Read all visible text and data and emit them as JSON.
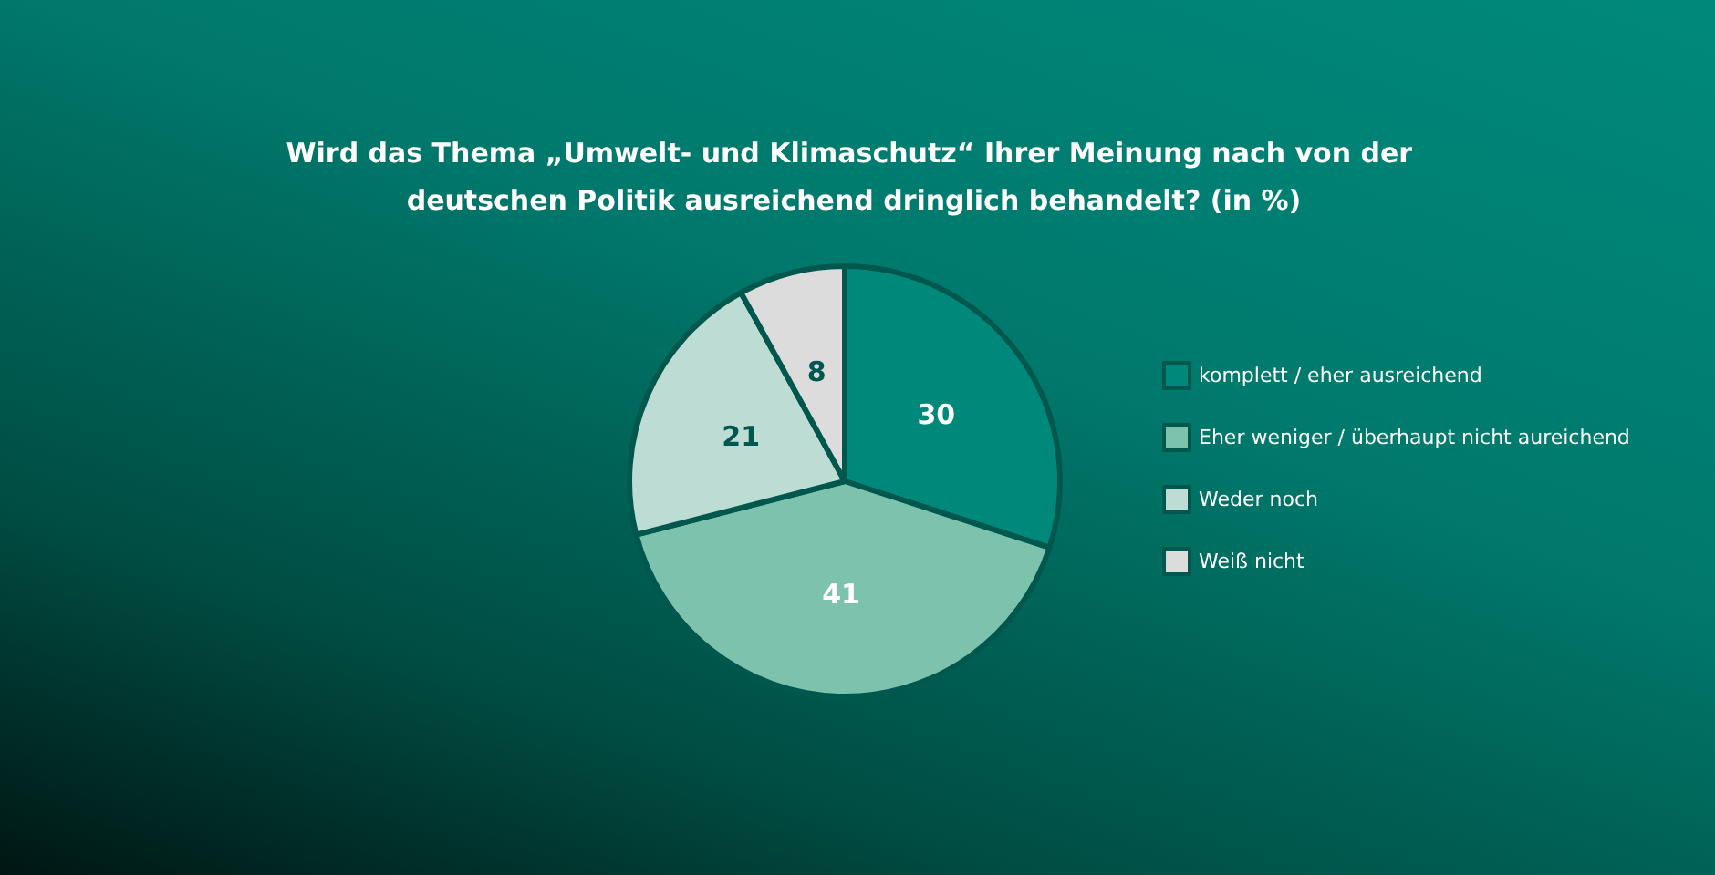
{
  "chart_data": {
    "type": "pie",
    "title": "Wird das Thema „Umwelt- und Klimaschutz“ Ihrer Meinung nach von der deutschen Politik ausreichend dringlich behandelt? (in %)",
    "categories": [
      "komplett / eher ausreichend",
      "Eher weniger / überhaupt nicht aureichend",
      "Weder noch",
      "Weiß nicht"
    ],
    "values": [
      30,
      41,
      21,
      8
    ],
    "colors": [
      "#00897b",
      "#7cc2ad",
      "#bcdcd4",
      "#dcdcdc"
    ],
    "data_labels": true,
    "legend": "right"
  }
}
